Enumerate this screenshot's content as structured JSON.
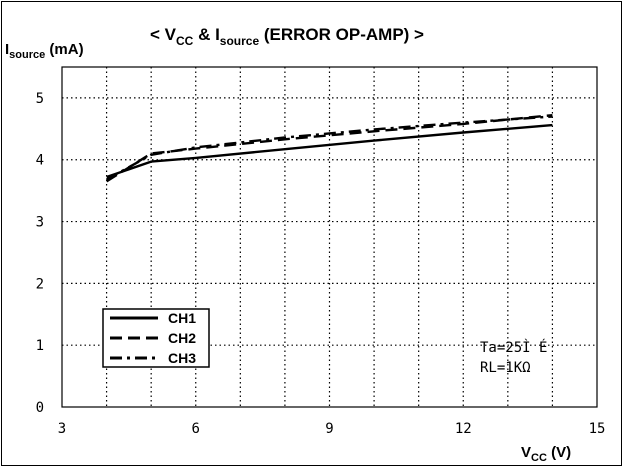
{
  "chart_data": {
    "type": "line",
    "title": {
      "prefix": "< V",
      "vsub": "CC",
      "mid": " & I",
      "isub": "source",
      "suffix": " (ERROR OP-AMP) >"
    },
    "ylabel": {
      "main": "I",
      "sub": "source",
      "unit": " (mA)"
    },
    "xlabel": {
      "main": "V",
      "sub": "CC",
      "unit": " (V)"
    },
    "xlim": [
      3,
      15
    ],
    "ylim": [
      0,
      5.5
    ],
    "x_ticks": [
      "3",
      "6",
      "9",
      "12",
      "15"
    ],
    "x_tick_values": [
      3,
      6,
      9,
      12,
      15
    ],
    "y_ticks": [
      "0",
      "1",
      "2",
      "3",
      "4",
      "5"
    ],
    "y_tick_values": [
      0,
      1,
      2,
      3,
      4,
      5
    ],
    "grid": true,
    "legend_position": "bottom-left",
    "series": [
      {
        "name": "CH1",
        "dash": "solid",
        "x": [
          4,
          5,
          6,
          8,
          10,
          12,
          14
        ],
        "y": [
          3.72,
          3.97,
          4.03,
          4.17,
          4.31,
          4.44,
          4.56
        ]
      },
      {
        "name": "CH2",
        "dash": "dashed",
        "x": [
          4,
          5,
          6,
          8,
          10,
          12,
          14
        ],
        "y": [
          3.65,
          4.1,
          4.18,
          4.33,
          4.46,
          4.58,
          4.72
        ]
      },
      {
        "name": "CH3",
        "dash": "dashdot",
        "x": [
          4,
          5,
          6,
          8,
          10,
          12,
          14
        ],
        "y": [
          3.68,
          4.08,
          4.2,
          4.36,
          4.49,
          4.6,
          4.7
        ]
      }
    ],
    "annotations": [
      "Ta=25Ì É",
      "RL=1KΩ"
    ]
  }
}
